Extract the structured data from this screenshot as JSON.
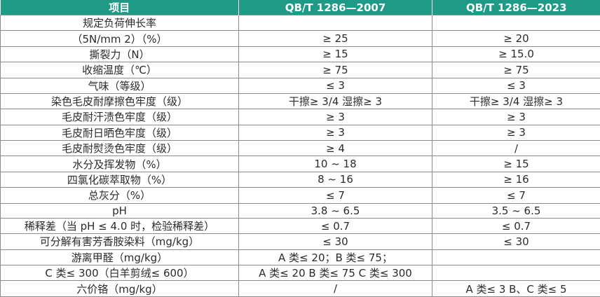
{
  "header": {
    "item": "项目",
    "std2007": "QB/T 1286—2007",
    "std2023": "QB/T 1286—2023"
  },
  "rows": [
    [
      "规定负荷伸长率",
      "",
      ""
    ],
    [
      "（5N/mm 2）（%）",
      "≥ 25",
      "≥ 20"
    ],
    [
      "撕裂力（N）",
      "≥ 15",
      "≥ 15.0"
    ],
    [
      "收缩温度（℃）",
      "≥ 75",
      "≥ 75"
    ],
    [
      "气味（等级）",
      "≤ 3",
      "≤ 3"
    ],
    [
      "染色毛皮耐摩擦色牢度（级）",
      "干擦≥ 3/4 湿擦≥ 3",
      "干擦≥ 3/4 湿擦≥ 3"
    ],
    [
      "毛皮耐汗渍色牢度（级）",
      "≥ 3",
      "≥ 3"
    ],
    [
      "毛皮耐日晒色牢度（级）",
      "≥ 3",
      "≥ 3"
    ],
    [
      "毛皮耐熨烫色牢度（级）",
      "≥ 4",
      "/"
    ],
    [
      "水分及挥发物（%）",
      "10 ~ 18",
      "≥ 15"
    ],
    [
      "四氯化碳萃取物（%）",
      "8 ~ 16",
      "≥ 16"
    ],
    [
      "总灰分（%）",
      "≤ 7",
      "≤ 7"
    ],
    [
      "pH",
      "3.8 ~ 6.5",
      "3.5 ~ 6.5"
    ],
    [
      "稀释差（当 pH ≤ 4.0 时，检验稀释差）",
      "≤ 0.7",
      "≤ 0.7"
    ],
    [
      "可分解有害芳香胺染料（mg/kg）",
      "≤ 30",
      "≤ 30"
    ],
    [
      "游离甲醛（mg/kg）",
      "A 类≤ 20；B 类≤ 75；",
      ""
    ],
    [
      "C 类≤ 300（白羊剪绒≤ 600）",
      "A 类≤ 20 B 类≤ 75 C 类≤ 300",
      ""
    ],
    [
      "六价铬（mg/kg）",
      "/",
      "A 类≤ 3 B、C 类≤ 5"
    ]
  ],
  "colors": {
    "header_bg": "#1f9a86",
    "header_text": "#ffffff",
    "border": "#8c8c8c",
    "text": "#2b2b2b"
  }
}
